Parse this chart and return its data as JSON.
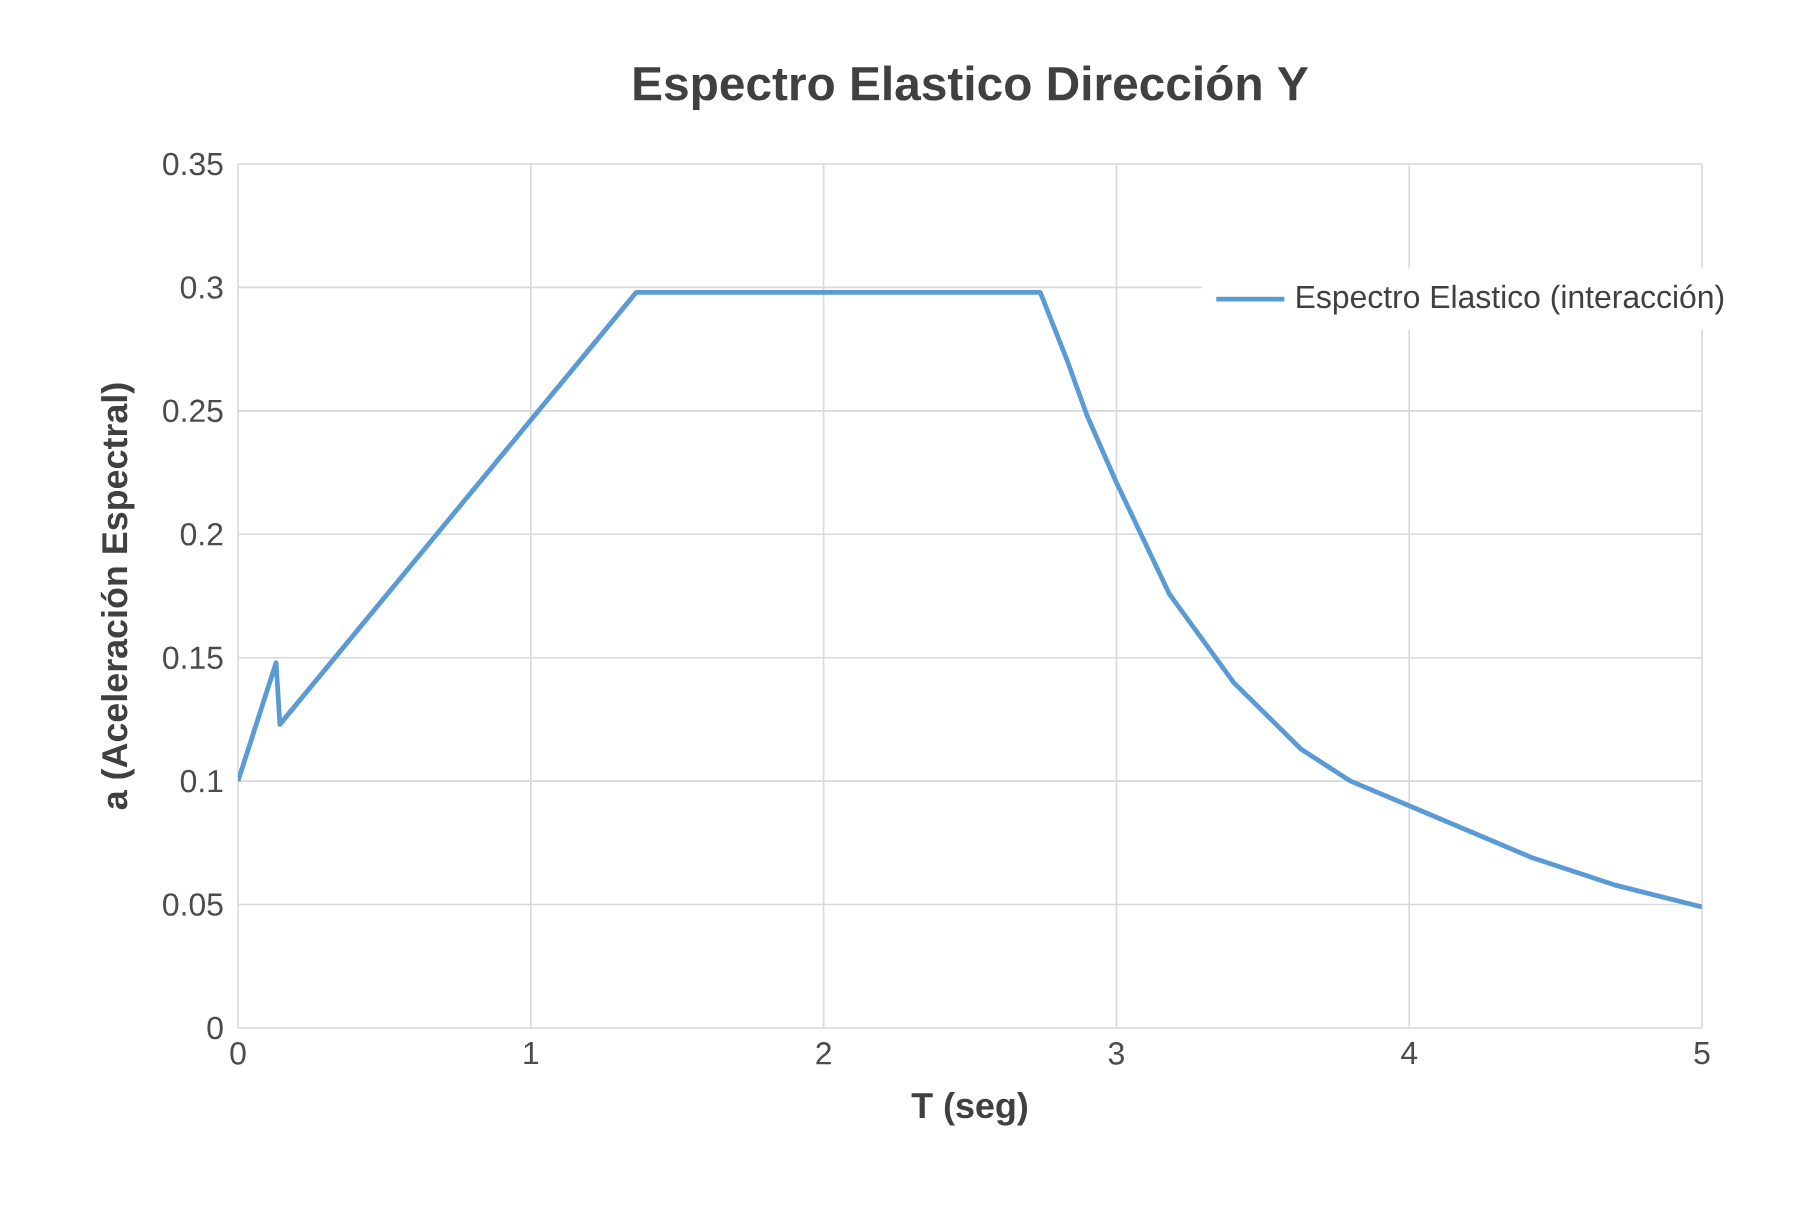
{
  "chart_data": {
    "type": "line",
    "title": "Espectro Elastico Dirección Y",
    "xlabel": "T (seg)",
    "ylabel": "a (Aceleración Espectral)",
    "xlim": [
      0,
      5
    ],
    "ylim": [
      0,
      0.35
    ],
    "xticks": [
      0,
      1,
      2,
      3,
      4,
      5
    ],
    "yticks": [
      0,
      0.05,
      0.1,
      0.15,
      0.2,
      0.25,
      0.3,
      0.35
    ],
    "grid": true,
    "legend": "top right",
    "marker": "none",
    "line_style": "solid",
    "series": [
      {
        "name": "Espectro Elastico (interacción)",
        "color": "#5b9bd5",
        "x": [
          0,
          0.13,
          0.143,
          1.36,
          2.74,
          2.83,
          2.9,
          3.0,
          3.18,
          3.4,
          3.63,
          3.8,
          4.0,
          4.42,
          4.7,
          5.0
        ],
        "values": [
          0.1,
          0.148,
          0.123,
          0.298,
          0.298,
          0.271,
          0.248,
          0.221,
          0.176,
          0.14,
          0.113,
          0.1,
          0.09,
          0.069,
          0.058,
          0.049
        ]
      }
    ]
  }
}
